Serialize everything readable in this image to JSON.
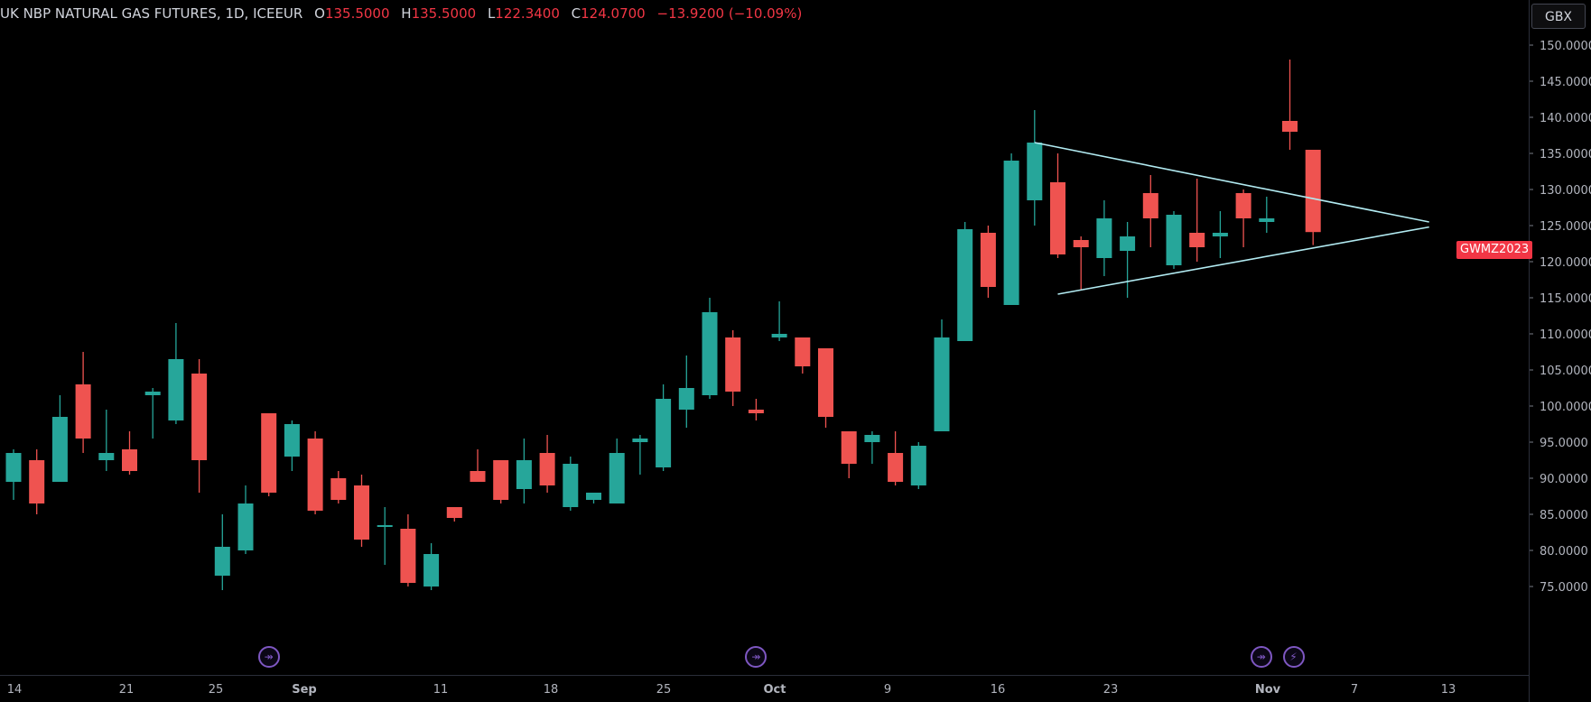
{
  "header": {
    "symbol": "UK NBP NATURAL GAS FUTURES, 1D, ICEEUR",
    "open_label": "O",
    "open": "135.5000",
    "high_label": "H",
    "high": "135.5000",
    "low_label": "L",
    "low": "122.3400",
    "close_label": "C",
    "close": "124.0700",
    "change": "−13.9200 (−10.09%)"
  },
  "currency": "GBX",
  "symbol_tag": "GWMZ2023",
  "colors": {
    "up": "#26a69a",
    "down": "#ef5350",
    "trendline": "#b2ebf2",
    "event": "#7e57c2",
    "axis_text": "#b2b5be"
  },
  "event_icons": [
    "dividend-arrow-icon",
    "dividend-arrow-icon",
    "dividend-arrow-icon",
    "lightning-icon"
  ],
  "chart_data": {
    "type": "candlestick",
    "ylim": [
      70,
      152
    ],
    "y_ticks": [
      "150.0000",
      "145.0000",
      "140.0000",
      "135.0000",
      "130.0000",
      "125.0000",
      "120.0000",
      "115.0000",
      "110.0000",
      "105.0000",
      "100.0000",
      "95.0000",
      "90.0000",
      "85.0000",
      "80.0000",
      "75.0000"
    ],
    "x_ticks": [
      "14",
      "21",
      "25",
      "Sep",
      "11",
      "18",
      "25",
      "Oct",
      "9",
      "16",
      "23",
      "Nov",
      "7",
      "13"
    ],
    "candles": [
      {
        "o": 89.5,
        "h": 94,
        "l": 87,
        "c": 93.5
      },
      {
        "o": 92.5,
        "h": 94,
        "l": 85,
        "c": 86.5
      },
      {
        "o": 89.5,
        "h": 101.5,
        "l": 89.5,
        "c": 98.5
      },
      {
        "o": 103,
        "h": 107.5,
        "l": 93.5,
        "c": 95.5
      },
      {
        "o": 92.5,
        "h": 99.5,
        "l": 91,
        "c": 93.5
      },
      {
        "o": 94,
        "h": 96.5,
        "l": 90.5,
        "c": 91
      },
      {
        "o": 101.5,
        "h": 102.5,
        "l": 95.5,
        "c": 102
      },
      {
        "o": 98,
        "h": 111.5,
        "l": 97.5,
        "c": 106.5
      },
      {
        "o": 104.5,
        "h": 106.5,
        "l": 88,
        "c": 92.5
      },
      {
        "o": 76.5,
        "h": 85,
        "l": 74.5,
        "c": 80.5
      },
      {
        "o": 80,
        "h": 89,
        "l": 79.5,
        "c": 86.5
      },
      {
        "o": 99,
        "h": 99,
        "l": 87.5,
        "c": 88
      },
      {
        "o": 93,
        "h": 98,
        "l": 91,
        "c": 97.5
      },
      {
        "o": 95.5,
        "h": 96.5,
        "l": 85,
        "c": 85.5
      },
      {
        "o": 90,
        "h": 91,
        "l": 86.5,
        "c": 87
      },
      {
        "o": 89,
        "h": 90.5,
        "l": 80.5,
        "c": 81.5
      },
      {
        "o": 83.5,
        "h": 86,
        "l": 78,
        "c": 83.5
      },
      {
        "o": 83,
        "h": 85,
        "l": 75,
        "c": 75.5
      },
      {
        "o": 75,
        "h": 81,
        "l": 74.5,
        "c": 79.5
      },
      {
        "o": 86,
        "h": 86,
        "l": 84,
        "c": 84.5
      },
      {
        "o": 91,
        "h": 94,
        "l": 89.5,
        "c": 89.5
      },
      {
        "o": 92.5,
        "h": 92.5,
        "l": 86.5,
        "c": 87
      },
      {
        "o": 88.5,
        "h": 95.5,
        "l": 86.5,
        "c": 92.5
      },
      {
        "o": 93.5,
        "h": 96,
        "l": 88,
        "c": 89
      },
      {
        "o": 86,
        "h": 93,
        "l": 85.5,
        "c": 92
      },
      {
        "o": 87,
        "h": 88,
        "l": 86.5,
        "c": 88
      },
      {
        "o": 86.5,
        "h": 95.5,
        "l": 86.5,
        "c": 93.5
      },
      {
        "o": 95,
        "h": 96,
        "l": 90.5,
        "c": 95.5
      },
      {
        "o": 91.5,
        "h": 103,
        "l": 91,
        "c": 101
      },
      {
        "o": 99.5,
        "h": 107,
        "l": 97,
        "c": 102.5
      },
      {
        "o": 101.5,
        "h": 115,
        "l": 101,
        "c": 113
      },
      {
        "o": 109.5,
        "h": 110.5,
        "l": 100,
        "c": 102
      },
      {
        "o": 99.5,
        "h": 101,
        "l": 98,
        "c": 99
      },
      {
        "o": 109.5,
        "h": 114.5,
        "l": 109,
        "c": 110
      },
      {
        "o": 109.5,
        "h": 109.5,
        "l": 104.5,
        "c": 105.5
      },
      {
        "o": 108,
        "h": 108,
        "l": 97,
        "c": 98.5
      },
      {
        "o": 96.5,
        "h": 96.5,
        "l": 90,
        "c": 92
      },
      {
        "o": 95,
        "h": 96.5,
        "l": 92,
        "c": 96
      },
      {
        "o": 93.5,
        "h": 96.5,
        "l": 89,
        "c": 89.5
      },
      {
        "o": 89,
        "h": 95,
        "l": 88.5,
        "c": 94.5
      },
      {
        "o": 96.5,
        "h": 112,
        "l": 96.5,
        "c": 109.5
      },
      {
        "o": 109,
        "h": 125.5,
        "l": 109,
        "c": 124.5
      },
      {
        "o": 124,
        "h": 125,
        "l": 115,
        "c": 116.5
      },
      {
        "o": 114,
        "h": 135,
        "l": 114,
        "c": 134
      },
      {
        "o": 128.5,
        "h": 141,
        "l": 125,
        "c": 136.5
      },
      {
        "o": 131,
        "h": 135,
        "l": 120.5,
        "c": 121
      },
      {
        "o": 123,
        "h": 123.5,
        "l": 116,
        "c": 122
      },
      {
        "o": 120.5,
        "h": 128.5,
        "l": 118,
        "c": 126
      },
      {
        "o": 121.5,
        "h": 125.5,
        "l": 115,
        "c": 123.5
      },
      {
        "o": 129.5,
        "h": 132,
        "l": 122,
        "c": 126
      },
      {
        "o": 119.5,
        "h": 127,
        "l": 119,
        "c": 126.5
      },
      {
        "o": 124,
        "h": 131.5,
        "l": 120,
        "c": 122
      },
      {
        "o": 123.5,
        "h": 127,
        "l": 120.5,
        "c": 124
      },
      {
        "o": 129.5,
        "h": 130,
        "l": 122,
        "c": 126
      },
      {
        "o": 125.5,
        "h": 129,
        "l": 124,
        "c": 126
      },
      {
        "o": 139.5,
        "h": 148,
        "l": 135.5,
        "c": 138
      },
      {
        "o": 135.5,
        "h": 135.5,
        "l": 122.3,
        "c": 124.1
      }
    ],
    "pattern": "symmetrical triangle",
    "resistance_line": [
      [
        44,
        136.5
      ],
      [
        61,
        125.5
      ]
    ],
    "support_line": [
      [
        45,
        115.5
      ],
      [
        61,
        124.8
      ]
    ],
    "event_markers": [
      11,
      32,
      54,
      55
    ]
  }
}
